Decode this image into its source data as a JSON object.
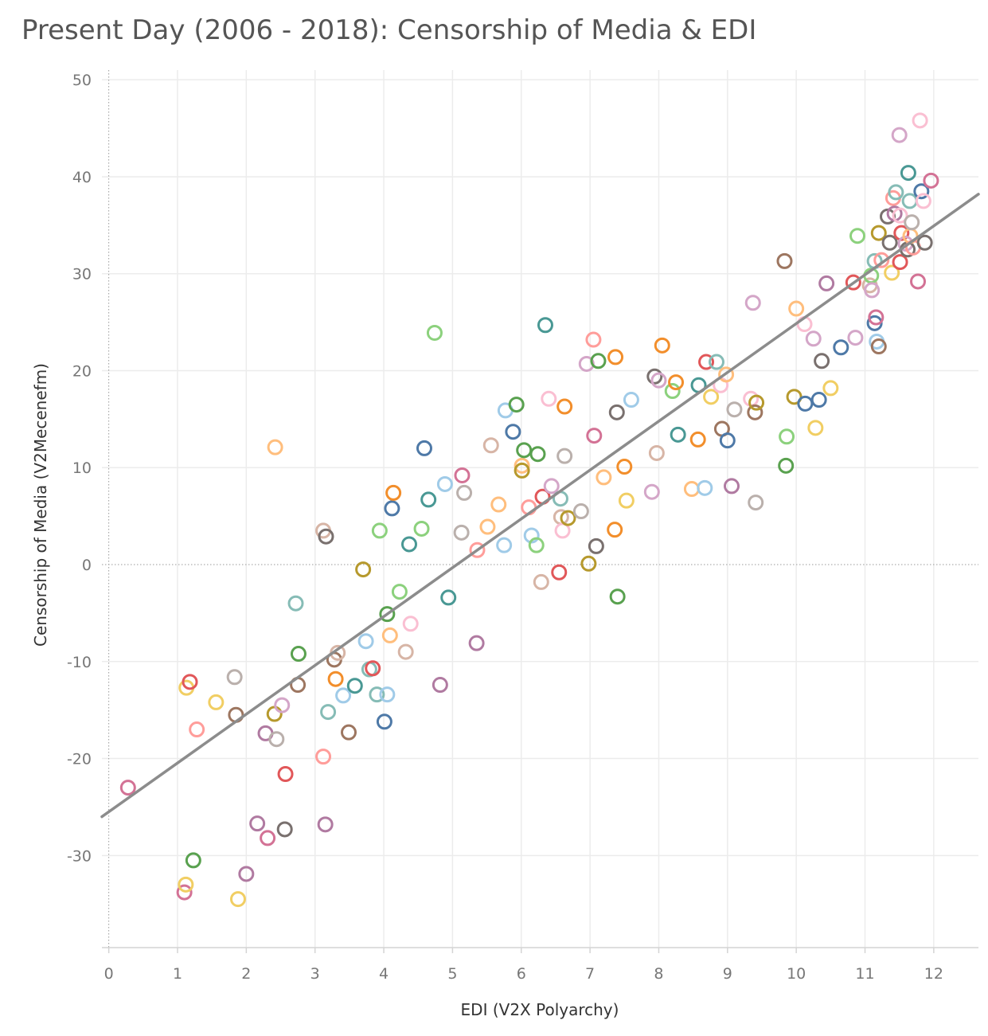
{
  "chart_data": {
    "type": "scatter",
    "title": "Present Day (2006 - 2018): Censorship of Media & EDI",
    "xlabel": "EDI (V2X Polyarchy)",
    "ylabel": "Censorship of Media (V2Mecenefm)",
    "xlim": [
      -0.1,
      12.65
    ],
    "ylim": [
      -39.5,
      51
    ],
    "x_ticks": [
      0,
      1,
      2,
      3,
      4,
      5,
      6,
      7,
      8,
      9,
      10,
      11,
      12
    ],
    "y_ticks": [
      -30,
      -20,
      -10,
      0,
      10,
      20,
      30,
      40,
      50
    ],
    "grid": true,
    "zero_line": true,
    "marker": "hollow-circle",
    "trend_line": {
      "x": [
        -0.1,
        12.65
      ],
      "y": [
        -26.0,
        38.2
      ]
    },
    "palette": [
      "#4e79a7",
      "#a0cbe8",
      "#f28e2b",
      "#ffbe7d",
      "#59a14f",
      "#8cd17d",
      "#b6992d",
      "#f1ce63",
      "#499894",
      "#86bcb6",
      "#e15759",
      "#ff9d9a",
      "#79706e",
      "#bab0ac",
      "#d37295",
      "#fabfd2",
      "#b07aa1",
      "#d4a6c8",
      "#9d7660",
      "#d7b5a6"
    ],
    "points": [
      {
        "x": 0.28,
        "y": -23,
        "c": 14
      },
      {
        "x": 1.1,
        "y": -33.8,
        "c": 14
      },
      {
        "x": 1.12,
        "y": -33,
        "c": 7
      },
      {
        "x": 1.23,
        "y": -30.5,
        "c": 4
      },
      {
        "x": 1.13,
        "y": -12.7,
        "c": 7
      },
      {
        "x": 1.18,
        "y": -12.1,
        "c": 10
      },
      {
        "x": 1.28,
        "y": -17,
        "c": 11
      },
      {
        "x": 1.56,
        "y": -14.2,
        "c": 7
      },
      {
        "x": 1.83,
        "y": -11.6,
        "c": 13
      },
      {
        "x": 1.85,
        "y": -15.5,
        "c": 18
      },
      {
        "x": 1.88,
        "y": -34.5,
        "c": 7
      },
      {
        "x": 2.0,
        "y": -31.9,
        "c": 16
      },
      {
        "x": 2.16,
        "y": -26.7,
        "c": 16
      },
      {
        "x": 2.28,
        "y": -17.4,
        "c": 16
      },
      {
        "x": 2.31,
        "y": -28.2,
        "c": 14
      },
      {
        "x": 2.41,
        "y": -15.4,
        "c": 6
      },
      {
        "x": 2.44,
        "y": -18,
        "c": 13
      },
      {
        "x": 2.52,
        "y": -14.5,
        "c": 17
      },
      {
        "x": 2.56,
        "y": -27.3,
        "c": 12
      },
      {
        "x": 2.57,
        "y": -21.6,
        "c": 10
      },
      {
        "x": 2.42,
        "y": 12.1,
        "c": 3
      },
      {
        "x": 2.72,
        "y": -4,
        "c": 9
      },
      {
        "x": 2.76,
        "y": -9.2,
        "c": 4
      },
      {
        "x": 2.75,
        "y": -12.4,
        "c": 18
      },
      {
        "x": 3.12,
        "y": -19.8,
        "c": 11
      },
      {
        "x": 3.12,
        "y": 3.5,
        "c": 19
      },
      {
        "x": 3.15,
        "y": -26.8,
        "c": 16
      },
      {
        "x": 3.16,
        "y": 2.9,
        "c": 12
      },
      {
        "x": 3.19,
        "y": -15.2,
        "c": 9
      },
      {
        "x": 3.28,
        "y": -9.8,
        "c": 18
      },
      {
        "x": 3.3,
        "y": -11.8,
        "c": 2
      },
      {
        "x": 3.33,
        "y": -9.1,
        "c": 19
      },
      {
        "x": 3.41,
        "y": -13.5,
        "c": 1
      },
      {
        "x": 3.49,
        "y": -17.3,
        "c": 18
      },
      {
        "x": 3.58,
        "y": -12.5,
        "c": 8
      },
      {
        "x": 3.7,
        "y": -0.5,
        "c": 6
      },
      {
        "x": 3.74,
        "y": -7.9,
        "c": 1
      },
      {
        "x": 3.79,
        "y": -10.8,
        "c": 9
      },
      {
        "x": 3.84,
        "y": -10.7,
        "c": 10
      },
      {
        "x": 3.9,
        "y": -13.4,
        "c": 9
      },
      {
        "x": 3.94,
        "y": 3.5,
        "c": 5
      },
      {
        "x": 4.01,
        "y": -16.2,
        "c": 0
      },
      {
        "x": 4.05,
        "y": -13.4,
        "c": 1
      },
      {
        "x": 4.05,
        "y": -5.1,
        "c": 4
      },
      {
        "x": 4.09,
        "y": -7.3,
        "c": 3
      },
      {
        "x": 4.12,
        "y": 5.8,
        "c": 0
      },
      {
        "x": 4.14,
        "y": 7.4,
        "c": 2
      },
      {
        "x": 4.23,
        "y": -2.8,
        "c": 5
      },
      {
        "x": 4.32,
        "y": -9,
        "c": 19
      },
      {
        "x": 4.37,
        "y": 2.1,
        "c": 8
      },
      {
        "x": 4.39,
        "y": -6.1,
        "c": 15
      },
      {
        "x": 4.55,
        "y": 3.7,
        "c": 5
      },
      {
        "x": 4.59,
        "y": 12,
        "c": 0
      },
      {
        "x": 4.65,
        "y": 6.7,
        "c": 8
      },
      {
        "x": 4.74,
        "y": 23.9,
        "c": 5
      },
      {
        "x": 4.82,
        "y": -12.4,
        "c": 16
      },
      {
        "x": 4.89,
        "y": 8.3,
        "c": 1
      },
      {
        "x": 4.94,
        "y": -3.4,
        "c": 8
      },
      {
        "x": 5.13,
        "y": 3.3,
        "c": 13
      },
      {
        "x": 5.14,
        "y": 9.2,
        "c": 14
      },
      {
        "x": 5.17,
        "y": 7.4,
        "c": 13
      },
      {
        "x": 5.35,
        "y": -8.1,
        "c": 16
      },
      {
        "x": 5.36,
        "y": 1.5,
        "c": 11
      },
      {
        "x": 5.51,
        "y": 3.9,
        "c": 3
      },
      {
        "x": 5.56,
        "y": 12.3,
        "c": 19
      },
      {
        "x": 5.67,
        "y": 6.2,
        "c": 3
      },
      {
        "x": 5.75,
        "y": 2,
        "c": 1
      },
      {
        "x": 5.77,
        "y": 15.9,
        "c": 1
      },
      {
        "x": 5.88,
        "y": 13.7,
        "c": 0
      },
      {
        "x": 5.93,
        "y": 16.5,
        "c": 4
      },
      {
        "x": 6.01,
        "y": 10.2,
        "c": 3
      },
      {
        "x": 6.01,
        "y": 9.7,
        "c": 6
      },
      {
        "x": 6.04,
        "y": 11.8,
        "c": 4
      },
      {
        "x": 6.11,
        "y": 5.9,
        "c": 11
      },
      {
        "x": 6.15,
        "y": 3,
        "c": 1
      },
      {
        "x": 6.22,
        "y": 2,
        "c": 5
      },
      {
        "x": 6.24,
        "y": 11.4,
        "c": 4
      },
      {
        "x": 6.29,
        "y": -1.8,
        "c": 19
      },
      {
        "x": 6.31,
        "y": 7,
        "c": 10
      },
      {
        "x": 6.35,
        "y": 24.7,
        "c": 8
      },
      {
        "x": 6.4,
        "y": 17.1,
        "c": 15
      },
      {
        "x": 6.44,
        "y": 8.1,
        "c": 17
      },
      {
        "x": 6.55,
        "y": -0.8,
        "c": 10
      },
      {
        "x": 6.57,
        "y": 6.8,
        "c": 9
      },
      {
        "x": 6.58,
        "y": 4.9,
        "c": 19
      },
      {
        "x": 6.6,
        "y": 3.5,
        "c": 15
      },
      {
        "x": 6.63,
        "y": 16.3,
        "c": 2
      },
      {
        "x": 6.63,
        "y": 11.2,
        "c": 13
      },
      {
        "x": 6.68,
        "y": 4.8,
        "c": 6
      },
      {
        "x": 6.87,
        "y": 5.5,
        "c": 13
      },
      {
        "x": 6.95,
        "y": 20.7,
        "c": 17
      },
      {
        "x": 6.98,
        "y": 0.1,
        "c": 6
      },
      {
        "x": 7.05,
        "y": 23.2,
        "c": 11
      },
      {
        "x": 7.06,
        "y": 13.3,
        "c": 14
      },
      {
        "x": 7.09,
        "y": 1.9,
        "c": 12
      },
      {
        "x": 7.12,
        "y": 21,
        "c": 4
      },
      {
        "x": 7.2,
        "y": 9,
        "c": 3
      },
      {
        "x": 7.36,
        "y": 3.6,
        "c": 2
      },
      {
        "x": 7.37,
        "y": 21.4,
        "c": 2
      },
      {
        "x": 7.39,
        "y": 15.7,
        "c": 12
      },
      {
        "x": 7.4,
        "y": -3.3,
        "c": 4
      },
      {
        "x": 7.5,
        "y": 10.1,
        "c": 2
      },
      {
        "x": 7.53,
        "y": 6.6,
        "c": 7
      },
      {
        "x": 7.6,
        "y": 17,
        "c": 1
      },
      {
        "x": 7.9,
        "y": 7.5,
        "c": 17
      },
      {
        "x": 7.94,
        "y": 19.4,
        "c": 12
      },
      {
        "x": 7.97,
        "y": 11.5,
        "c": 19
      },
      {
        "x": 8.0,
        "y": 19,
        "c": 17
      },
      {
        "x": 8.05,
        "y": 22.6,
        "c": 2
      },
      {
        "x": 8.2,
        "y": 17.9,
        "c": 5
      },
      {
        "x": 8.25,
        "y": 18.8,
        "c": 2
      },
      {
        "x": 8.28,
        "y": 13.4,
        "c": 8
      },
      {
        "x": 8.48,
        "y": 7.8,
        "c": 3
      },
      {
        "x": 8.57,
        "y": 12.9,
        "c": 2
      },
      {
        "x": 8.58,
        "y": 18.5,
        "c": 8
      },
      {
        "x": 8.67,
        "y": 7.9,
        "c": 1
      },
      {
        "x": 8.69,
        "y": 20.9,
        "c": 10
      },
      {
        "x": 8.76,
        "y": 17.3,
        "c": 7
      },
      {
        "x": 8.84,
        "y": 20.9,
        "c": 9
      },
      {
        "x": 8.9,
        "y": 18.5,
        "c": 15
      },
      {
        "x": 8.92,
        "y": 14,
        "c": 18
      },
      {
        "x": 8.98,
        "y": 19.6,
        "c": 3
      },
      {
        "x": 9.0,
        "y": 12.8,
        "c": 0
      },
      {
        "x": 9.06,
        "y": 8.1,
        "c": 16
      },
      {
        "x": 9.1,
        "y": 16,
        "c": 13
      },
      {
        "x": 9.34,
        "y": 17.1,
        "c": 15
      },
      {
        "x": 9.37,
        "y": 27,
        "c": 17
      },
      {
        "x": 9.4,
        "y": 15.7,
        "c": 18
      },
      {
        "x": 9.41,
        "y": 6.4,
        "c": 13
      },
      {
        "x": 9.42,
        "y": 16.7,
        "c": 6
      },
      {
        "x": 9.83,
        "y": 31.3,
        "c": 18
      },
      {
        "x": 9.86,
        "y": 13.2,
        "c": 5
      },
      {
        "x": 9.85,
        "y": 10.2,
        "c": 4
      },
      {
        "x": 9.97,
        "y": 17.3,
        "c": 6
      },
      {
        "x": 10.0,
        "y": 26.4,
        "c": 3
      },
      {
        "x": 10.12,
        "y": 24.8,
        "c": 15
      },
      {
        "x": 10.13,
        "y": 16.6,
        "c": 0
      },
      {
        "x": 10.25,
        "y": 23.3,
        "c": 17
      },
      {
        "x": 10.28,
        "y": 14.1,
        "c": 7
      },
      {
        "x": 10.33,
        "y": 17,
        "c": 0
      },
      {
        "x": 10.37,
        "y": 21,
        "c": 12
      },
      {
        "x": 10.44,
        "y": 29,
        "c": 16
      },
      {
        "x": 10.5,
        "y": 18.2,
        "c": 7
      },
      {
        "x": 10.65,
        "y": 22.4,
        "c": 0
      },
      {
        "x": 10.83,
        "y": 29.1,
        "c": 10
      },
      {
        "x": 10.86,
        "y": 23.4,
        "c": 17
      },
      {
        "x": 10.89,
        "y": 33.9,
        "c": 5
      },
      {
        "x": 11.07,
        "y": 28.8,
        "c": 19
      },
      {
        "x": 11.09,
        "y": 29.8,
        "c": 5
      },
      {
        "x": 11.1,
        "y": 28.3,
        "c": 17
      },
      {
        "x": 11.14,
        "y": 31.3,
        "c": 9
      },
      {
        "x": 11.14,
        "y": 24.9,
        "c": 0
      },
      {
        "x": 11.16,
        "y": 25.5,
        "c": 14
      },
      {
        "x": 11.17,
        "y": 23,
        "c": 1
      },
      {
        "x": 11.2,
        "y": 22.5,
        "c": 18
      },
      {
        "x": 11.2,
        "y": 34.2,
        "c": 6
      },
      {
        "x": 11.24,
        "y": 31.4,
        "c": 11
      },
      {
        "x": 11.33,
        "y": 35.9,
        "c": 12
      },
      {
        "x": 11.36,
        "y": 33.2,
        "c": 12
      },
      {
        "x": 11.39,
        "y": 30.1,
        "c": 7
      },
      {
        "x": 11.41,
        "y": 37.8,
        "c": 11
      },
      {
        "x": 11.43,
        "y": 36.2,
        "c": 16
      },
      {
        "x": 11.45,
        "y": 38.4,
        "c": 9
      },
      {
        "x": 11.5,
        "y": 44.3,
        "c": 17
      },
      {
        "x": 11.51,
        "y": 36,
        "c": 15
      },
      {
        "x": 11.51,
        "y": 31.2,
        "c": 10
      },
      {
        "x": 11.53,
        "y": 34.2,
        "c": 10
      },
      {
        "x": 11.59,
        "y": 33.1,
        "c": 17
      },
      {
        "x": 11.62,
        "y": 32.5,
        "c": 12
      },
      {
        "x": 11.63,
        "y": 40.4,
        "c": 8
      },
      {
        "x": 11.65,
        "y": 37.5,
        "c": 9
      },
      {
        "x": 11.66,
        "y": 33.9,
        "c": 3
      },
      {
        "x": 11.68,
        "y": 35.3,
        "c": 13
      },
      {
        "x": 11.7,
        "y": 32.7,
        "c": 11
      },
      {
        "x": 11.77,
        "y": 29.2,
        "c": 14
      },
      {
        "x": 11.8,
        "y": 45.8,
        "c": 15
      },
      {
        "x": 11.82,
        "y": 38.5,
        "c": 0
      },
      {
        "x": 11.85,
        "y": 37.5,
        "c": 15
      },
      {
        "x": 11.87,
        "y": 33.2,
        "c": 12
      },
      {
        "x": 11.96,
        "y": 39.6,
        "c": 14
      }
    ]
  }
}
